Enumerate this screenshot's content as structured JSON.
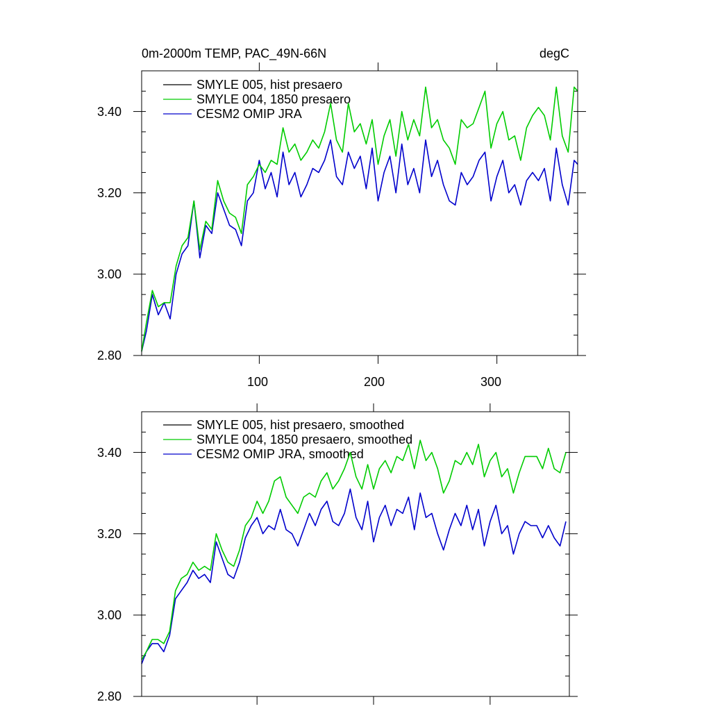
{
  "chart_data": [
    {
      "type": "line",
      "title_left": "0m-2000m TEMP, PAC_49N-66N",
      "title_right": "degC",
      "xlabel": "",
      "ylabel": "",
      "xlim": [
        1,
        368
      ],
      "ylim": [
        2.8,
        3.5
      ],
      "yticks": [
        2.8,
        3.0,
        3.2,
        3.4
      ],
      "ytick_labels": [
        "2.80",
        "3.00",
        "3.20",
        "3.40"
      ],
      "xticks": [
        100,
        200,
        300
      ],
      "xtick_labels": [
        "100",
        "200",
        "300"
      ],
      "legend": "top-left",
      "series": [
        {
          "name": "SMYLE 005, hist presaero",
          "color": "#000000"
        },
        {
          "name": "SMYLE 004, 1850 presaero",
          "color": "#00cc00",
          "x": [
            1,
            5,
            10,
            15,
            20,
            25,
            30,
            35,
            40,
            45,
            50,
            55,
            60,
            65,
            70,
            75,
            80,
            85,
            90,
            95,
            100,
            105,
            110,
            115,
            120,
            125,
            130,
            135,
            140,
            145,
            150,
            155,
            160,
            165,
            170,
            175,
            180,
            185,
            190,
            195,
            200,
            205,
            210,
            215,
            220,
            225,
            230,
            235,
            240,
            245,
            250,
            255,
            260,
            265,
            270,
            275,
            280,
            285,
            290,
            295,
            300,
            305,
            310,
            315,
            320,
            325,
            330,
            335,
            340,
            345,
            350,
            355,
            360,
            365,
            368
          ],
          "y": [
            2.81,
            2.88,
            2.96,
            2.92,
            2.93,
            2.93,
            3.02,
            3.07,
            3.09,
            3.18,
            3.06,
            3.13,
            3.11,
            3.23,
            3.18,
            3.15,
            3.14,
            3.1,
            3.22,
            3.24,
            3.27,
            3.25,
            3.28,
            3.27,
            3.36,
            3.3,
            3.32,
            3.28,
            3.3,
            3.33,
            3.31,
            3.35,
            3.42,
            3.33,
            3.3,
            3.42,
            3.35,
            3.37,
            3.32,
            3.38,
            3.27,
            3.34,
            3.38,
            3.29,
            3.4,
            3.33,
            3.38,
            3.34,
            3.46,
            3.36,
            3.38,
            3.33,
            3.31,
            3.27,
            3.38,
            3.36,
            3.37,
            3.41,
            3.45,
            3.31,
            3.37,
            3.4,
            3.33,
            3.34,
            3.28,
            3.36,
            3.39,
            3.41,
            3.39,
            3.33,
            3.46,
            3.34,
            3.3,
            3.46,
            3.45
          ]
        },
        {
          "name": "CESM2 OMIP JRA",
          "color": "#0000cc",
          "x": [
            1,
            5,
            10,
            15,
            20,
            25,
            30,
            35,
            40,
            45,
            50,
            55,
            60,
            65,
            70,
            75,
            80,
            85,
            90,
            95,
            100,
            105,
            110,
            115,
            120,
            125,
            130,
            135,
            140,
            145,
            150,
            155,
            160,
            165,
            170,
            175,
            180,
            185,
            190,
            195,
            200,
            205,
            210,
            215,
            220,
            225,
            230,
            235,
            240,
            245,
            250,
            255,
            260,
            265,
            270,
            275,
            280,
            285,
            290,
            295,
            300,
            305,
            310,
            315,
            320,
            325,
            330,
            335,
            340,
            345,
            350,
            355,
            360,
            365,
            368
          ],
          "y": [
            2.81,
            2.86,
            2.95,
            2.9,
            2.93,
            2.89,
            3.0,
            3.05,
            3.07,
            3.18,
            3.04,
            3.12,
            3.1,
            3.2,
            3.16,
            3.12,
            3.11,
            3.07,
            3.18,
            3.2,
            3.28,
            3.21,
            3.25,
            3.19,
            3.3,
            3.22,
            3.25,
            3.19,
            3.22,
            3.26,
            3.25,
            3.28,
            3.33,
            3.24,
            3.22,
            3.3,
            3.26,
            3.29,
            3.21,
            3.31,
            3.18,
            3.25,
            3.29,
            3.2,
            3.32,
            3.22,
            3.26,
            3.2,
            3.33,
            3.24,
            3.28,
            3.22,
            3.18,
            3.17,
            3.25,
            3.22,
            3.24,
            3.28,
            3.3,
            3.18,
            3.24,
            3.28,
            3.2,
            3.22,
            3.17,
            3.23,
            3.25,
            3.23,
            3.26,
            3.18,
            3.31,
            3.22,
            3.17,
            3.28,
            3.27
          ]
        }
      ]
    },
    {
      "type": "line",
      "title_left": "",
      "title_right": "",
      "xlabel": "",
      "ylabel": "",
      "xlim": [
        1,
        368
      ],
      "ylim": [
        2.8,
        3.5
      ],
      "yticks": [
        2.8,
        3.0,
        3.2,
        3.4
      ],
      "ytick_labels": [
        "2.80",
        "3.00",
        "3.20",
        "3.40"
      ],
      "xticks": [
        100,
        200,
        300
      ],
      "xtick_labels": [],
      "legend": "top-left",
      "series": [
        {
          "name": "SMYLE 005, hist presaero, smoothed",
          "color": "#000000"
        },
        {
          "name": "SMYLE 004, 1850 presaero, smoothed",
          "color": "#00cc00",
          "x": [
            1,
            5,
            10,
            15,
            20,
            25,
            30,
            35,
            40,
            45,
            50,
            55,
            60,
            65,
            70,
            75,
            80,
            85,
            90,
            95,
            100,
            105,
            110,
            115,
            120,
            125,
            130,
            135,
            140,
            145,
            150,
            155,
            160,
            165,
            170,
            175,
            180,
            185,
            190,
            195,
            200,
            205,
            210,
            215,
            220,
            225,
            230,
            235,
            240,
            245,
            250,
            255,
            260,
            265,
            270,
            275,
            280,
            285,
            290,
            295,
            300,
            305,
            310,
            315,
            320,
            325,
            330,
            335,
            340,
            345,
            350,
            355,
            360,
            365
          ],
          "y": [
            2.89,
            2.91,
            2.94,
            2.94,
            2.93,
            2.96,
            3.06,
            3.09,
            3.1,
            3.13,
            3.11,
            3.12,
            3.11,
            3.2,
            3.16,
            3.13,
            3.12,
            3.16,
            3.22,
            3.24,
            3.28,
            3.25,
            3.28,
            3.33,
            3.34,
            3.29,
            3.27,
            3.25,
            3.29,
            3.3,
            3.29,
            3.33,
            3.35,
            3.31,
            3.33,
            3.36,
            3.4,
            3.34,
            3.31,
            3.37,
            3.31,
            3.36,
            3.38,
            3.35,
            3.39,
            3.38,
            3.42,
            3.36,
            3.43,
            3.38,
            3.4,
            3.36,
            3.3,
            3.33,
            3.38,
            3.37,
            3.4,
            3.37,
            3.42,
            3.34,
            3.38,
            3.4,
            3.34,
            3.36,
            3.3,
            3.35,
            3.39,
            3.39,
            3.39,
            3.36,
            3.41,
            3.36,
            3.35,
            3.4
          ]
        },
        {
          "name": "CESM2 OMIP JRA, smoothed",
          "color": "#0000cc",
          "x": [
            1,
            5,
            10,
            15,
            20,
            25,
            30,
            35,
            40,
            45,
            50,
            55,
            60,
            65,
            70,
            75,
            80,
            85,
            90,
            95,
            100,
            105,
            110,
            115,
            120,
            125,
            130,
            135,
            140,
            145,
            150,
            155,
            160,
            165,
            170,
            175,
            180,
            185,
            190,
            195,
            200,
            205,
            210,
            215,
            220,
            225,
            230,
            235,
            240,
            245,
            250,
            255,
            260,
            265,
            270,
            275,
            280,
            285,
            290,
            295,
            300,
            305,
            310,
            315,
            320,
            325,
            330,
            335,
            340,
            345,
            350,
            355,
            360,
            365
          ],
          "y": [
            2.88,
            2.91,
            2.93,
            2.93,
            2.91,
            2.95,
            3.04,
            3.06,
            3.08,
            3.11,
            3.09,
            3.1,
            3.08,
            3.18,
            3.14,
            3.1,
            3.09,
            3.13,
            3.19,
            3.22,
            3.24,
            3.2,
            3.22,
            3.21,
            3.26,
            3.21,
            3.2,
            3.17,
            3.21,
            3.25,
            3.22,
            3.26,
            3.28,
            3.23,
            3.22,
            3.25,
            3.31,
            3.24,
            3.21,
            3.28,
            3.18,
            3.24,
            3.27,
            3.22,
            3.26,
            3.25,
            3.29,
            3.21,
            3.3,
            3.24,
            3.25,
            3.2,
            3.16,
            3.21,
            3.25,
            3.22,
            3.27,
            3.21,
            3.26,
            3.17,
            3.23,
            3.27,
            3.2,
            3.22,
            3.15,
            3.2,
            3.23,
            3.22,
            3.22,
            3.19,
            3.22,
            3.19,
            3.17,
            3.23
          ]
        }
      ]
    }
  ]
}
